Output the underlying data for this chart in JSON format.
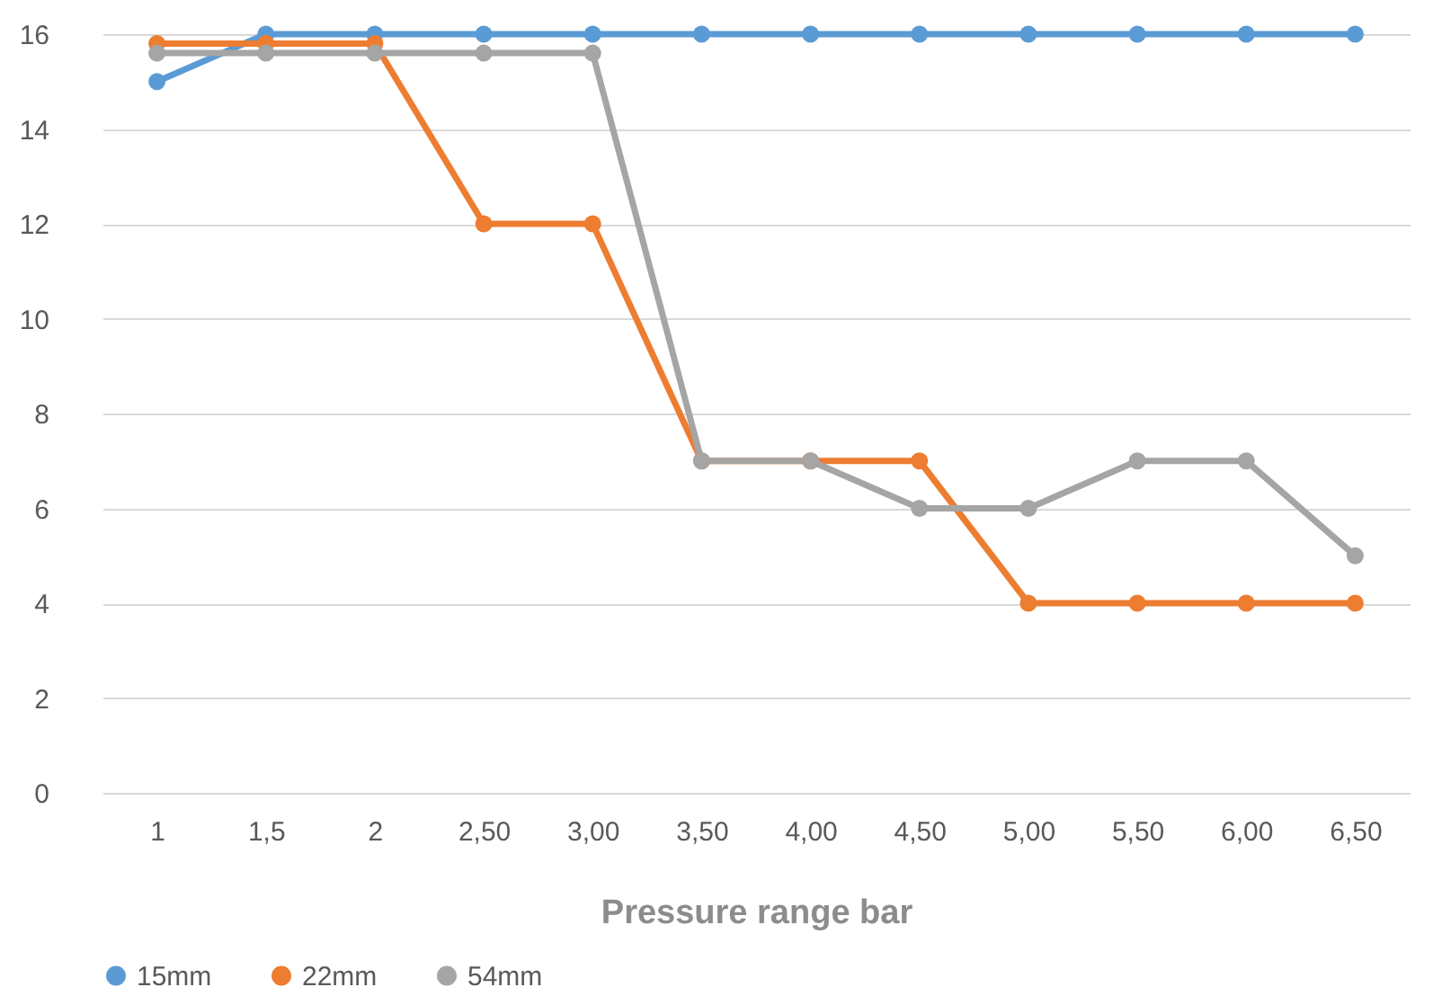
{
  "chart_data": {
    "type": "line",
    "xlabel": "Pressure range bar",
    "categories": [
      "1",
      "1,5",
      "2",
      "2,50",
      "3,00",
      "3,50",
      "4,00",
      "4,50",
      "5,00",
      "5,50",
      "6,00",
      "6,50"
    ],
    "series": [
      {
        "name": "15mm",
        "color": "#5b9bd5",
        "values": [
          15,
          16,
          16,
          16,
          16,
          16,
          16,
          16,
          16,
          16,
          16,
          16
        ]
      },
      {
        "name": "22mm",
        "color": "#ed7d31",
        "values": [
          15.8,
          15.8,
          15.8,
          12,
          12,
          7,
          7,
          7,
          4,
          4,
          4,
          4
        ]
      },
      {
        "name": "54mm",
        "color": "#a5a5a5",
        "values": [
          15.6,
          15.6,
          15.6,
          15.6,
          15.6,
          7,
          7,
          6,
          6,
          7,
          7,
          5
        ]
      }
    ],
    "ylim": [
      0,
      16
    ],
    "yticks": [
      0,
      2,
      4,
      6,
      8,
      10,
      12,
      14,
      16
    ],
    "grid": "y",
    "legend": "bottom",
    "marker": "circle"
  }
}
